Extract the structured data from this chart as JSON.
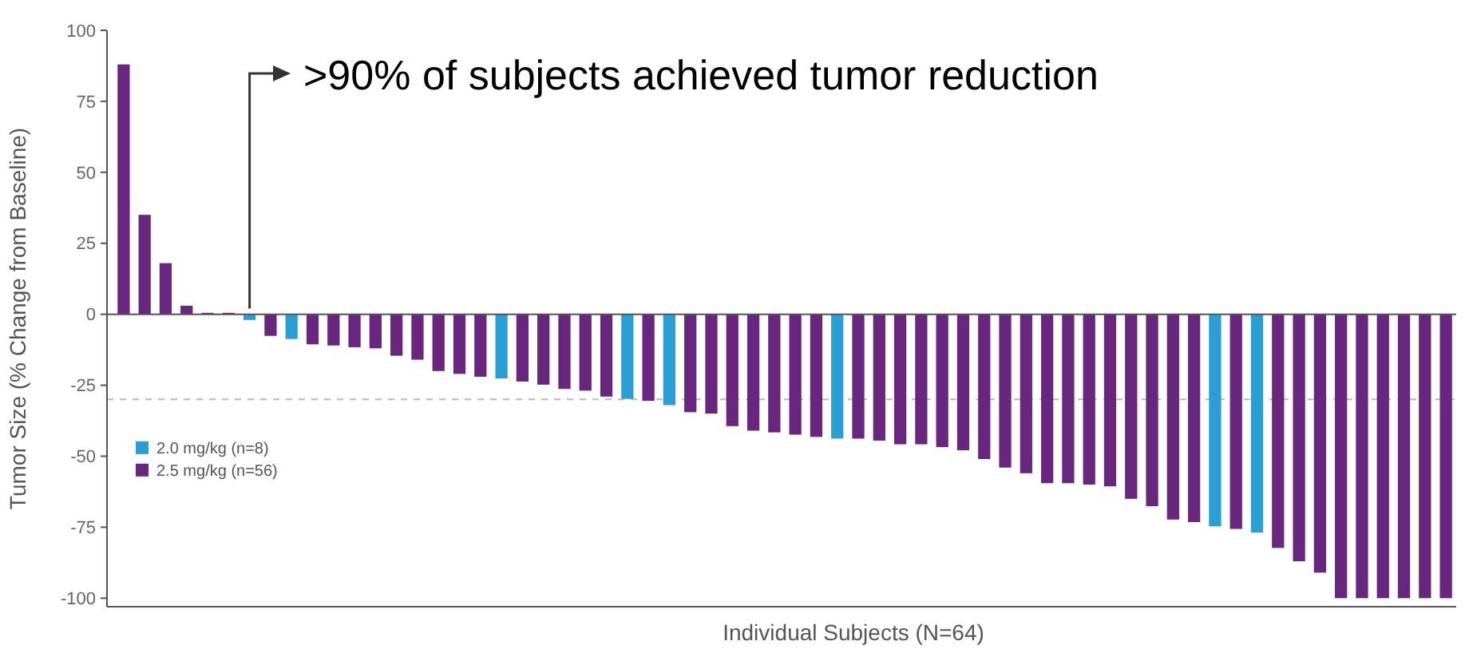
{
  "chart_data": {
    "type": "bar",
    "ylabel": "Tumor Size (% Change from Baseline)",
    "xlabel": "Individual Subjects (N=64)",
    "annotations": [
      ">90% of subjects achieved tumor reduction"
    ],
    "categories": [
      null,
      null,
      null,
      null,
      null,
      null,
      null,
      null,
      null,
      null,
      null,
      null,
      null,
      null,
      null,
      null,
      null,
      null,
      null,
      null,
      null,
      null,
      null,
      null,
      null,
      null,
      null,
      null,
      null,
      null,
      null,
      null,
      null,
      null,
      null,
      null,
      null,
      null,
      null,
      null,
      null,
      null,
      null,
      null,
      null,
      null,
      null,
      null,
      null,
      null,
      null,
      null,
      null,
      null,
      null,
      null,
      null,
      null,
      null,
      null,
      null,
      null,
      null,
      null
    ],
    "series": [
      {
        "name": "2.0 mg/kg (n=8)",
        "color": "#2a9fd6",
        "values": [
          null,
          null,
          null,
          null,
          null,
          null,
          -2,
          null,
          -8.7,
          null,
          null,
          null,
          null,
          null,
          null,
          null,
          null,
          null,
          -22.6,
          null,
          null,
          null,
          null,
          null,
          -29.8,
          null,
          -32,
          null,
          null,
          null,
          null,
          null,
          null,
          null,
          -43.8,
          null,
          null,
          null,
          null,
          null,
          null,
          null,
          null,
          null,
          null,
          null,
          null,
          null,
          null,
          null,
          null,
          null,
          -74.7,
          null,
          -76.9,
          null,
          null,
          null,
          null,
          null,
          null,
          null,
          null,
          null
        ]
      },
      {
        "name": "2.5 mg/kg (n=56)",
        "color": "#68267e",
        "values": [
          88,
          35,
          18,
          3,
          0.5,
          0.5,
          null,
          -7.6,
          null,
          -10.6,
          -11,
          -11.6,
          -12,
          -14.6,
          -16,
          -20,
          -21,
          -22,
          null,
          -23.7,
          -24.8,
          -26.3,
          -26.9,
          -29,
          null,
          -30.5,
          null,
          -34.5,
          -35,
          -39.4,
          -41,
          -41.6,
          -42.4,
          -43.2,
          null,
          -43.8,
          -44.5,
          -45.8,
          -45.8,
          -46.8,
          -47.9,
          -51,
          -54,
          -56,
          -59.5,
          -59.5,
          -60,
          -60.6,
          -65,
          -67.6,
          -72.3,
          -73.2,
          null,
          -75.6,
          null,
          -82.3,
          -87,
          -91,
          -100,
          -100,
          -100,
          -100,
          -100,
          -100
        ]
      }
    ],
    "ylim": [
      -103,
      100
    ],
    "yticks": [
      -100,
      -75,
      -50,
      -25,
      0,
      25,
      50,
      75,
      100
    ],
    "ref_lines": [
      {
        "axis": "y",
        "value": -30,
        "color": "#bbbbbb",
        "line_style": "dashed"
      }
    ],
    "legend": "left"
  }
}
